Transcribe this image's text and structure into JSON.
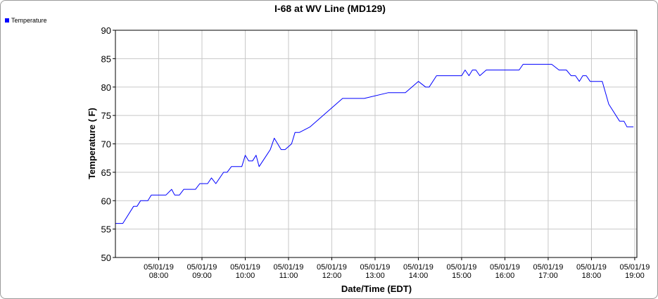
{
  "chart_data": {
    "type": "line",
    "title": "I-68 at WV Line (MD129)",
    "xlabel": "Date/Time (EDT)",
    "ylabel": "Temperature ( F)",
    "ylim": [
      50,
      90
    ],
    "yticks": [
      50,
      55,
      60,
      65,
      70,
      75,
      80,
      85,
      90
    ],
    "xlim_hours": [
      7.0,
      19.05
    ],
    "xticks": [
      {
        "date": "05/01/19",
        "time": "08:00",
        "hour": 8
      },
      {
        "date": "05/01/19",
        "time": "09:00",
        "hour": 9
      },
      {
        "date": "05/01/19",
        "time": "10:00",
        "hour": 10
      },
      {
        "date": "05/01/19",
        "time": "11:00",
        "hour": 11
      },
      {
        "date": "05/01/19",
        "time": "12:00",
        "hour": 12
      },
      {
        "date": "05/01/19",
        "time": "13:00",
        "hour": 13
      },
      {
        "date": "05/01/19",
        "time": "14:00",
        "hour": 14
      },
      {
        "date": "05/01/19",
        "time": "15:00",
        "hour": 15
      },
      {
        "date": "05/01/19",
        "time": "16:00",
        "hour": 16
      },
      {
        "date": "05/01/19",
        "time": "17:00",
        "hour": 17
      },
      {
        "date": "05/01/19",
        "time": "18:00",
        "hour": 18
      },
      {
        "date": "05/01/19",
        "time": "19:00",
        "hour": 19
      }
    ],
    "grid": true,
    "legend": "top-left",
    "series": [
      {
        "name": "Temperature",
        "color": "#0000ff",
        "points": [
          [
            7.0,
            56
          ],
          [
            7.17,
            56
          ],
          [
            7.42,
            59
          ],
          [
            7.5,
            59
          ],
          [
            7.58,
            60
          ],
          [
            7.75,
            60
          ],
          [
            7.83,
            61
          ],
          [
            8.17,
            61
          ],
          [
            8.3,
            62
          ],
          [
            8.37,
            61
          ],
          [
            8.48,
            61
          ],
          [
            8.58,
            62
          ],
          [
            8.85,
            62
          ],
          [
            8.95,
            63
          ],
          [
            9.13,
            63
          ],
          [
            9.22,
            64
          ],
          [
            9.32,
            63
          ],
          [
            9.5,
            65
          ],
          [
            9.58,
            65
          ],
          [
            9.68,
            66
          ],
          [
            9.92,
            66
          ],
          [
            10.0,
            68
          ],
          [
            10.08,
            67
          ],
          [
            10.17,
            67
          ],
          [
            10.25,
            68
          ],
          [
            10.32,
            66
          ],
          [
            10.58,
            69
          ],
          [
            10.67,
            71
          ],
          [
            10.83,
            69
          ],
          [
            10.92,
            69
          ],
          [
            11.07,
            70
          ],
          [
            11.15,
            72
          ],
          [
            11.25,
            72
          ],
          [
            11.5,
            73
          ],
          [
            12.25,
            78
          ],
          [
            12.75,
            78
          ],
          [
            13.3,
            79
          ],
          [
            13.7,
            79
          ],
          [
            14.0,
            81
          ],
          [
            14.17,
            80
          ],
          [
            14.25,
            80
          ],
          [
            14.42,
            82
          ],
          [
            15.0,
            82
          ],
          [
            15.08,
            83
          ],
          [
            15.17,
            82
          ],
          [
            15.25,
            83
          ],
          [
            15.33,
            83
          ],
          [
            15.42,
            82
          ],
          [
            15.57,
            83
          ],
          [
            16.33,
            83
          ],
          [
            16.42,
            84
          ],
          [
            17.08,
            84
          ],
          [
            17.25,
            83
          ],
          [
            17.42,
            83
          ],
          [
            17.53,
            82
          ],
          [
            17.63,
            82
          ],
          [
            17.72,
            81
          ],
          [
            17.8,
            82
          ],
          [
            17.88,
            82
          ],
          [
            17.97,
            81
          ],
          [
            18.25,
            81
          ],
          [
            18.4,
            77
          ],
          [
            18.65,
            74
          ],
          [
            18.75,
            74
          ],
          [
            18.82,
            73
          ],
          [
            18.97,
            73
          ]
        ]
      }
    ]
  }
}
